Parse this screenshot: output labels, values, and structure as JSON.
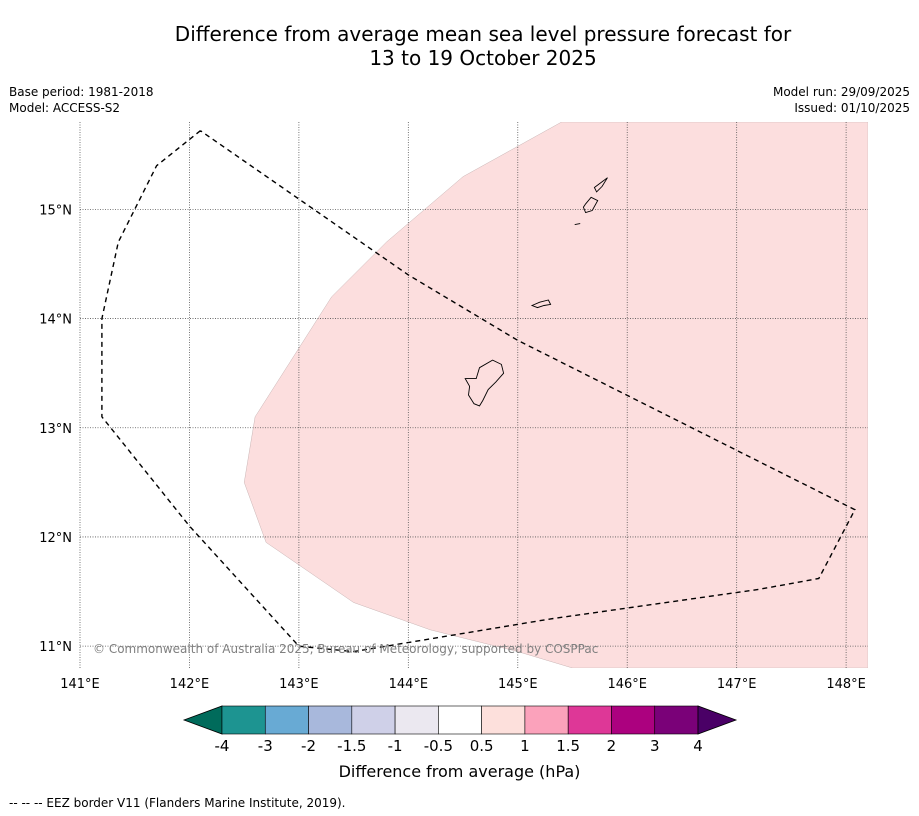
{
  "title": {
    "line1": "Difference from average mean sea level pressure forecast for",
    "line2": "13 to 19 October 2025"
  },
  "meta": {
    "base_period": "Base period: 1981-2018",
    "model": "Model: ACCESS-S2",
    "model_run": "Model run: 29/09/2025",
    "issued": "Issued: 01/10/2025"
  },
  "map": {
    "lon_labels": [
      "141°E",
      "142°E",
      "143°E",
      "144°E",
      "145°E",
      "146°E",
      "147°E",
      "148°E"
    ],
    "lat_labels": [
      "15°N",
      "14°N",
      "13°N",
      "12°N",
      "11°N"
    ],
    "lon_range": [
      141.0,
      148.2
    ],
    "lat_range": [
      10.8,
      15.8
    ],
    "anomaly_region": {
      "category": "0.5 to 1",
      "color": "#fcdede",
      "outline_lonlat": [
        [
          145.4,
          15.8
        ],
        [
          144.5,
          15.3
        ],
        [
          143.8,
          14.7
        ],
        [
          143.3,
          14.2
        ],
        [
          142.6,
          13.1
        ],
        [
          142.5,
          12.5
        ],
        [
          142.7,
          11.95
        ],
        [
          143.5,
          11.4
        ],
        [
          144.2,
          11.15
        ],
        [
          145.0,
          10.95
        ],
        [
          145.5,
          10.8
        ],
        [
          148.2,
          10.8
        ],
        [
          148.2,
          15.8
        ]
      ]
    },
    "eez_border_lonlat": [
      [
        142.1,
        15.72
      ],
      [
        141.7,
        15.4
      ],
      [
        141.35,
        14.7
      ],
      [
        141.2,
        14.0
      ],
      [
        141.2,
        13.1
      ],
      [
        142.0,
        12.1
      ],
      [
        143.0,
        11.0
      ],
      [
        143.5,
        10.95
      ],
      [
        145.3,
        11.25
      ],
      [
        147.2,
        11.52
      ],
      [
        147.75,
        11.62
      ],
      [
        148.08,
        12.25
      ],
      [
        145.0,
        13.8
      ],
      [
        144.0,
        14.4
      ],
      [
        142.1,
        15.72
      ]
    ],
    "islands_lonlat": [
      [
        [
          144.65,
          13.55
        ],
        [
          144.77,
          13.62
        ],
        [
          144.85,
          13.58
        ],
        [
          144.87,
          13.5
        ],
        [
          144.8,
          13.42
        ],
        [
          144.73,
          13.35
        ],
        [
          144.68,
          13.25
        ],
        [
          144.65,
          13.2
        ],
        [
          144.6,
          13.22
        ],
        [
          144.55,
          13.3
        ],
        [
          144.56,
          13.38
        ],
        [
          144.52,
          13.45
        ],
        [
          144.62,
          13.45
        ]
      ],
      [
        [
          145.13,
          14.12
        ],
        [
          145.2,
          14.15
        ],
        [
          145.28,
          14.17
        ],
        [
          145.3,
          14.13
        ],
        [
          145.24,
          14.12
        ],
        [
          145.18,
          14.1
        ]
      ],
      [
        [
          145.62,
          15.05
        ],
        [
          145.67,
          15.11
        ],
        [
          145.73,
          15.08
        ],
        [
          145.68,
          14.99
        ],
        [
          145.62,
          14.97
        ],
        [
          145.6,
          15.02
        ]
      ],
      [
        [
          145.7,
          15.2
        ],
        [
          145.78,
          15.26
        ],
        [
          145.82,
          15.29
        ],
        [
          145.77,
          15.21
        ],
        [
          145.72,
          15.16
        ]
      ],
      [
        [
          145.52,
          14.86
        ],
        [
          145.57,
          14.87
        ]
      ]
    ],
    "copyright": "© Commonwealth of Australia 2025, Bureau of Meteorology, supported by COSPPac"
  },
  "colorbar": {
    "label": "Difference from average (hPa)",
    "ticks": [
      "-4",
      "-3",
      "-2",
      "-1.5",
      "-1",
      "-0.5",
      "0.5",
      "1",
      "1.5",
      "2",
      "3",
      "4"
    ],
    "extend_low_color": "#006b5b",
    "extend_high_color": "#4a0066",
    "colors": [
      "#1d9491",
      "#68aad4",
      "#a8b8dc",
      "#cfd0e8",
      "#ebe8f0",
      "#ffffff",
      "#fde0dc",
      "#fba2bb",
      "#de3797",
      "#ac017f",
      "#7a0178"
    ]
  },
  "footer": "--  --  -- EEZ border V11 (Flanders Marine Institute, 2019)."
}
